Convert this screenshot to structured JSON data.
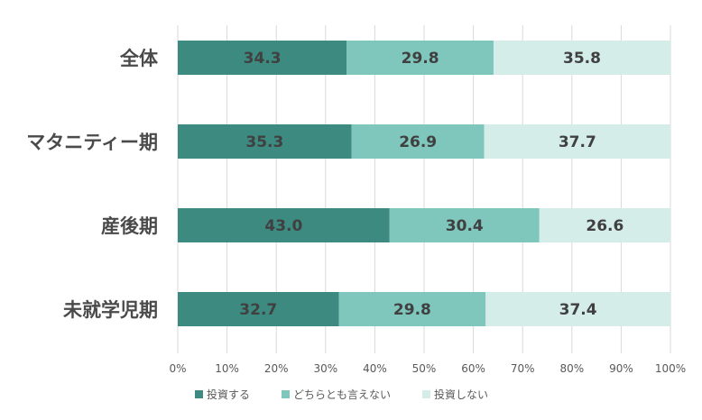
{
  "chart_data": {
    "type": "bar",
    "orientation": "horizontal",
    "stacked": true,
    "categories": [
      "全体",
      "マタニティー期",
      "産後期",
      "未就学児期"
    ],
    "series": [
      {
        "name": "投資する",
        "values": [
          34.3,
          35.3,
          43.0,
          32.7
        ],
        "color": "#3d8a80"
      },
      {
        "name": "どちらとも言えない",
        "values": [
          29.8,
          26.9,
          30.4,
          29.8
        ],
        "color": "#7fc7bd"
      },
      {
        "name": "投資しない",
        "values": [
          35.8,
          37.7,
          26.6,
          37.4
        ],
        "color": "#d4ede9"
      }
    ],
    "data_labels": [
      [
        "34.3",
        "29.8",
        "35.8"
      ],
      [
        "35.3",
        "26.9",
        "37.7"
      ],
      [
        "43.0",
        "30.4",
        "26.6"
      ],
      [
        "32.7",
        "29.8",
        "37.4"
      ]
    ],
    "x_ticks": [
      "0%",
      "10%",
      "20%",
      "30%",
      "40%",
      "50%",
      "60%",
      "70%",
      "80%",
      "90%",
      "100%"
    ],
    "xlim": [
      0,
      100
    ],
    "grid": true,
    "legend_position": "bottom"
  }
}
